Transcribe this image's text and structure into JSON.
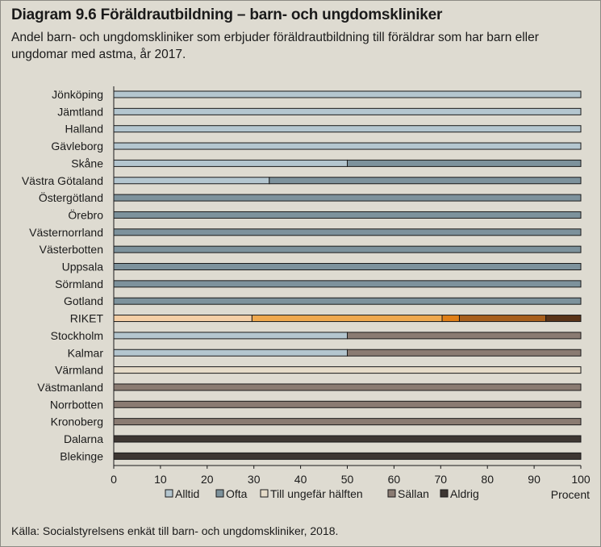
{
  "title": "Diagram 9.6 Föräldrautbildning – barn- och ungdomskliniker",
  "subtitle": "Andel barn- och ungdomskliniker som erbjuder föräldrautbildning till föräldrar som har barn eller ungdomar med astma, år 2017.",
  "source": "Källa: Socialstyrelsens enkät till barn- och ungdomskliniker, 2018.",
  "chart_data": {
    "type": "bar",
    "orientation": "horizontal",
    "stacked": true,
    "xlabel": "Procent",
    "xlim": [
      0,
      100
    ],
    "xticks": [
      0,
      10,
      20,
      30,
      40,
      50,
      60,
      70,
      80,
      90,
      100
    ],
    "grid": false,
    "legend_position": "bottom",
    "categories": [
      "Jönköping",
      "Jämtland",
      "Halland",
      "Gävleborg",
      "Skåne",
      "Västra Götaland",
      "Östergötland",
      "Örebro",
      "Västernorrland",
      "Västerbotten",
      "Uppsala",
      "Sörmland",
      "Gotland",
      "RIKET",
      "Stockholm",
      "Kalmar",
      "Värmland",
      "Västmanland",
      "Norrbotten",
      "Kronoberg",
      "Dalarna",
      "Blekinge"
    ],
    "series": [
      {
        "name": "Alltid",
        "color": "#b4c6cf",
        "riket_color": "#f5cfa6",
        "values": [
          100,
          100,
          100,
          100,
          50,
          33.3,
          0,
          0,
          0,
          0,
          0,
          0,
          0,
          29.6,
          50,
          50,
          0,
          0,
          0,
          0,
          0,
          0
        ]
      },
      {
        "name": "Ofta",
        "color": "#7d929c",
        "riket_color": "#f0a94e",
        "values": [
          0,
          0,
          0,
          0,
          50,
          66.7,
          100,
          100,
          100,
          100,
          100,
          100,
          100,
          40.7,
          0,
          0,
          0,
          0,
          0,
          0,
          0,
          0
        ]
      },
      {
        "name": "Till ungefär hälften",
        "color": "#e6dcc9",
        "riket_color": "#e07f17",
        "values": [
          0,
          0,
          0,
          0,
          0,
          0,
          0,
          0,
          0,
          0,
          0,
          0,
          0,
          3.7,
          0,
          0,
          100,
          0,
          0,
          0,
          0,
          0
        ]
      },
      {
        "name": "Sällan",
        "color": "#8a7b72",
        "riket_color": "#a85f1c",
        "values": [
          0,
          0,
          0,
          0,
          0,
          0,
          0,
          0,
          0,
          0,
          0,
          0,
          0,
          18.5,
          50,
          50,
          0,
          100,
          100,
          100,
          0,
          0
        ]
      },
      {
        "name": "Aldrig",
        "color": "#3d3632",
        "riket_color": "#5a3418",
        "values": [
          0,
          0,
          0,
          0,
          0,
          0,
          0,
          0,
          0,
          0,
          0,
          0,
          0,
          7.5,
          0,
          0,
          0,
          0,
          0,
          0,
          100,
          100
        ]
      }
    ]
  }
}
